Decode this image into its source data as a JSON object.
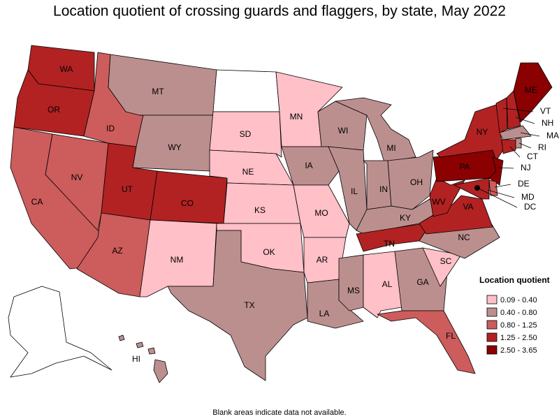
{
  "title": "Location quotient of crossing guards and flaggers, by state, May 2022",
  "legend": {
    "title": "Location quotient",
    "classes": [
      {
        "label": "0.09 - 0.40",
        "color": "#ffc0c8"
      },
      {
        "label": "0.40 - 0.80",
        "color": "#bc8f8f"
      },
      {
        "label": "0.80 - 1.25",
        "color": "#cd5c5c"
      },
      {
        "label": "1.25 - 2.50",
        "color": "#b22222"
      },
      {
        "label": "2.50 - 3.65",
        "color": "#8b0000"
      }
    ]
  },
  "states": [
    {
      "abbr": "WA",
      "class": 3
    },
    {
      "abbr": "OR",
      "class": 3
    },
    {
      "abbr": "CA",
      "class": 2
    },
    {
      "abbr": "NV",
      "class": 2
    },
    {
      "abbr": "ID",
      "class": 2
    },
    {
      "abbr": "MT",
      "class": 1
    },
    {
      "abbr": "WY",
      "class": 1
    },
    {
      "abbr": "UT",
      "class": 3
    },
    {
      "abbr": "CO",
      "class": 3
    },
    {
      "abbr": "AZ",
      "class": 2
    },
    {
      "abbr": "NM",
      "class": 0
    },
    {
      "abbr": null,
      "class": null
    },
    {
      "abbr": "SD",
      "class": 0
    },
    {
      "abbr": "NE",
      "class": 0
    },
    {
      "abbr": "KS",
      "class": 0
    },
    {
      "abbr": "OK",
      "class": 0
    },
    {
      "abbr": "TX",
      "class": 1
    },
    {
      "abbr": "MN",
      "class": 0
    },
    {
      "abbr": "IA",
      "class": 1
    },
    {
      "abbr": "MO",
      "class": 0
    },
    {
      "abbr": "AR",
      "class": 0
    },
    {
      "abbr": "LA",
      "class": 1
    },
    {
      "abbr": "WI",
      "class": 1
    },
    {
      "abbr": "IL",
      "class": 1
    },
    {
      "abbr": "MI",
      "class": 1
    },
    {
      "abbr": "IN",
      "class": 1
    },
    {
      "abbr": "OH",
      "class": 1
    },
    {
      "abbr": "KY",
      "class": 1
    },
    {
      "abbr": "TN",
      "class": 3
    },
    {
      "abbr": "MS",
      "class": 1
    },
    {
      "abbr": "AL",
      "class": 0
    },
    {
      "abbr": "GA",
      "class": 1
    },
    {
      "abbr": "SC",
      "class": 0
    },
    {
      "abbr": "NC",
      "class": 1
    },
    {
      "abbr": "FL",
      "class": 2
    },
    {
      "abbr": "VA",
      "class": 3
    },
    {
      "abbr": "WV",
      "class": 3
    },
    {
      "abbr": "PA",
      "class": 4
    },
    {
      "abbr": "NY",
      "class": 3
    },
    {
      "abbr": "NJ",
      "class": 4
    },
    {
      "abbr": "DE",
      "class": 2
    },
    {
      "abbr": "MD",
      "class": 3
    },
    {
      "abbr": "VT",
      "class": 3
    },
    {
      "abbr": "NH",
      "class": 3
    },
    {
      "abbr": "ME",
      "class": 4
    },
    {
      "abbr": "MA",
      "class": 1
    },
    {
      "abbr": "CT",
      "class": 3
    },
    {
      "abbr": "RI",
      "class": 1
    },
    {
      "abbr": null,
      "class": null
    },
    {
      "abbr": "HI",
      "class": 1
    },
    {
      "abbr": "DC",
      "class": 4
    }
  ],
  "note": "Blank areas indicate data not available."
}
